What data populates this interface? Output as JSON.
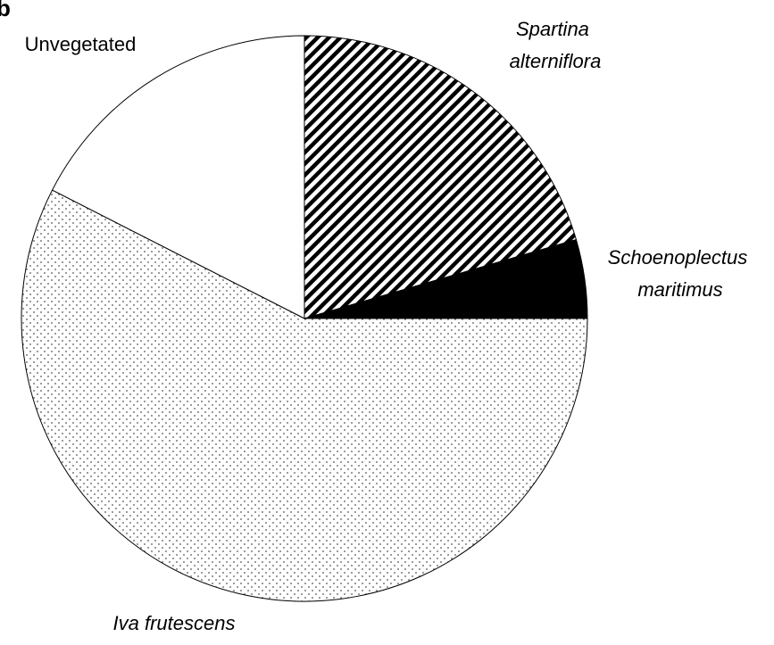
{
  "chart_data": {
    "type": "pie",
    "panel_label": "b",
    "categories": [
      "Spartina alterniflora",
      "Schoenoplectus maritimus",
      "Iva frutescens",
      "Unvegetated"
    ],
    "values": [
      20.5,
      4.5,
      57.5,
      17.5
    ],
    "fills": [
      "hatch",
      "#000000",
      "dots",
      "#ffffff"
    ],
    "italic": [
      true,
      true,
      true,
      false
    ]
  }
}
